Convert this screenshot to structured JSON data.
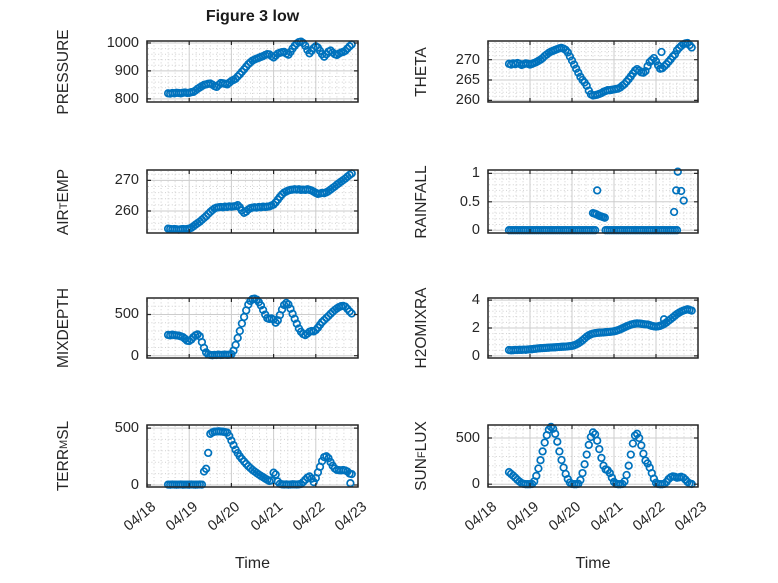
{
  "figure": {
    "title": "Figure 3 low",
    "x_axis": {
      "label": "Time",
      "tick_labels": [
        "04/18",
        "04/19",
        "04/20",
        "04/21",
        "04/22",
        "04/23"
      ]
    }
  },
  "style": {
    "marker_color": "#0072BD",
    "axis_color": "#262626",
    "text_color": "#262626",
    "major_grid_color": "#cdcdcd",
    "minor_grid_color": "#c9c9c9",
    "background": "#ffffff"
  },
  "chart_data": [
    {
      "name": "PRESSURE",
      "type": "scatter",
      "ylabel_parts": [
        {
          "text": "PRESSURE",
          "sub": false
        }
      ],
      "yticks": [
        800,
        900,
        1000
      ],
      "ytick_labels": [
        "800",
        "900",
        "1000"
      ],
      "ylim": [
        789,
        1007
      ],
      "minor_y_step": 20,
      "xlim": [
        0,
        5
      ],
      "x_start": 0.5,
      "x_step": 0.05,
      "y": [
        820,
        819,
        821,
        820,
        822,
        821,
        820,
        822,
        823,
        821,
        822,
        824,
        825,
        830,
        836,
        841,
        846,
        850,
        852,
        854,
        855,
        851,
        846,
        843,
        850,
        857,
        856,
        854,
        852,
        858,
        864,
        868,
        872,
        880,
        888,
        897,
        906,
        915,
        924,
        931,
        937,
        941,
        944,
        947,
        950,
        953,
        957,
        960,
        959,
        953,
        948,
        955,
        962,
        965,
        967,
        968,
        962,
        958,
        968,
        980,
        990,
        998,
        1003,
        1005,
        1000,
        990,
        975,
        963,
        972,
        982,
        988,
        983,
        972,
        960,
        951,
        960,
        969,
        973,
        966,
        960,
        957,
        962,
        966,
        968,
        972,
        980,
        988,
        995
      ],
      "extra_points": []
    },
    {
      "name": "THETA",
      "type": "scatter",
      "ylabel_parts": [
        {
          "text": "THETA",
          "sub": false
        }
      ],
      "yticks": [
        260,
        265,
        270
      ],
      "ytick_labels": [
        "260",
        "265",
        "270"
      ],
      "ylim": [
        259.6,
        274.6
      ],
      "minor_y_step": 1,
      "xlim": [
        0,
        5
      ],
      "x_start": 0.5,
      "x_step": 0.05,
      "y": [
        269.0,
        268.8,
        269.1,
        268.9,
        269.2,
        269.0,
        268.7,
        268.9,
        269.1,
        269.0,
        268.8,
        269.0,
        269.2,
        269.4,
        269.7,
        270.0,
        270.4,
        270.9,
        271.3,
        271.7,
        272.0,
        272.2,
        272.4,
        272.6,
        272.8,
        272.9,
        272.7,
        272.4,
        271.8,
        270.8,
        269.8,
        268.8,
        267.8,
        266.8,
        265.8,
        265.0,
        264.4,
        263.6,
        262.4,
        261.5,
        261.2,
        261.3,
        261.4,
        261.6,
        261.8,
        262.1,
        262.3,
        262.5,
        262.5,
        262.6,
        262.7,
        262.8,
        262.9,
        263.2,
        263.6,
        264.0,
        264.6,
        265.2,
        265.9,
        266.6,
        267.3,
        267.7,
        267.3,
        266.9,
        266.8,
        267.2,
        268.4,
        269.4,
        269.9,
        270.4,
        269.6,
        268.6,
        267.8,
        267.9,
        268.4,
        268.9,
        269.5,
        270.1,
        270.8,
        271.3,
        272.3,
        272.9,
        273.4,
        273.8,
        274.0,
        274.1,
        273.6,
        273.0
      ],
      "extra_points": [
        [
          4.13,
          271.9
        ]
      ]
    },
    {
      "name": "AIR_TEMP",
      "type": "scatter",
      "ylabel_parts": [
        {
          "text": "AIR",
          "sub": false
        },
        {
          "text": "T",
          "sub": true
        },
        {
          "text": "EMP",
          "sub": false
        }
      ],
      "yticks": [
        260,
        270
      ],
      "ytick_labels": [
        "260",
        "270"
      ],
      "ylim": [
        252.8,
        273.4
      ],
      "minor_y_step": 2,
      "xlim": [
        0,
        5
      ],
      "x_start": 0.5,
      "x_step": 0.05,
      "y": [
        254.2,
        254.1,
        254.0,
        254.1,
        254.0,
        253.9,
        254.0,
        254.1,
        254.0,
        254.1,
        254.2,
        254.5,
        255.0,
        255.5,
        256.0,
        256.5,
        257.1,
        257.7,
        258.3,
        259.0,
        259.7,
        260.3,
        260.8,
        261.1,
        261.2,
        261.3,
        261.2,
        261.4,
        261.3,
        261.5,
        261.4,
        261.5,
        261.6,
        261.9,
        261.2,
        260.2,
        259.4,
        259.8,
        260.5,
        260.9,
        261.1,
        261.2,
        261.1,
        261.3,
        261.2,
        261.4,
        261.3,
        261.4,
        261.5,
        261.8,
        262.1,
        262.8,
        263.7,
        264.6,
        265.4,
        266.0,
        266.4,
        266.7,
        266.9,
        267.0,
        267.1,
        267.0,
        267.1,
        266.9,
        267.0,
        266.9,
        267.1,
        266.9,
        266.7,
        266.3,
        265.9,
        265.6,
        265.7,
        265.9,
        265.8,
        266.1,
        266.5,
        267.0,
        267.5,
        268.0,
        268.6,
        269.1,
        269.6,
        270.1,
        270.6,
        271.2,
        271.8,
        272.3
      ],
      "extra_points": []
    },
    {
      "name": "RAINFALL",
      "type": "scatter",
      "ylabel_parts": [
        {
          "text": "RAINFALL",
          "sub": false
        }
      ],
      "yticks": [
        0,
        0.5,
        1
      ],
      "ytick_labels": [
        "0",
        "0.5",
        "1"
      ],
      "ylim": [
        -0.05,
        1.06
      ],
      "minor_y_step": 0.1,
      "xlim": [
        0,
        5
      ],
      "x_start": 0.5,
      "x_step": 0.05,
      "y": [
        0,
        0,
        0,
        0,
        0,
        0,
        0,
        0,
        0,
        0,
        0,
        0,
        0,
        0,
        0,
        0,
        0,
        0,
        0,
        0,
        0,
        0,
        0,
        0,
        0,
        0,
        0,
        0,
        0,
        0,
        0,
        0,
        0,
        0,
        0,
        0,
        0,
        0,
        0,
        0,
        0,
        0,
        null,
        null,
        null,
        null,
        0,
        0,
        0,
        0,
        0,
        0,
        0,
        0,
        0,
        0,
        0,
        0,
        0,
        0,
        0,
        0,
        0,
        0,
        0,
        0,
        0,
        0,
        0,
        0,
        0,
        0,
        0,
        0,
        0,
        0,
        0,
        0,
        0,
        0,
        0,
        null,
        null,
        null,
        null,
        null,
        null,
        null
      ],
      "extra_points": [
        [
          2.5,
          0.3
        ],
        [
          2.54,
          0.29
        ],
        [
          2.58,
          0.28
        ],
        [
          2.6,
          0.7
        ],
        [
          2.63,
          0.26
        ],
        [
          2.66,
          0.25
        ],
        [
          2.7,
          0.24
        ],
        [
          2.74,
          0.23
        ],
        [
          2.78,
          0.22
        ],
        [
          4.43,
          0.32
        ],
        [
          4.48,
          0.7
        ],
        [
          4.52,
          1.03
        ],
        [
          4.6,
          0.69
        ],
        [
          4.66,
          0.52
        ]
      ]
    },
    {
      "name": "MIXDEPTH",
      "type": "scatter",
      "ylabel_parts": [
        {
          "text": "MIXDEPTH",
          "sub": false
        }
      ],
      "yticks": [
        0,
        500
      ],
      "ytick_labels": [
        "0",
        "500"
      ],
      "ylim": [
        -28,
        700
      ],
      "minor_y_step": 100,
      "xlim": [
        0,
        5
      ],
      "x_start": 0.5,
      "x_step": 0.05,
      "y": [
        252,
        248,
        255,
        250,
        246,
        242,
        235,
        225,
        205,
        182,
        178,
        195,
        225,
        248,
        258,
        235,
        165,
        95,
        40,
        15,
        8,
        6,
        10,
        8,
        12,
        9,
        11,
        13,
        10,
        12,
        18,
        60,
        130,
        215,
        300,
        390,
        470,
        550,
        620,
        665,
        688,
        692,
        680,
        650,
        610,
        555,
        498,
        455,
        445,
        452,
        438,
        400,
        430,
        492,
        560,
        615,
        640,
        622,
        570,
        508,
        448,
        388,
        330,
        290,
        262,
        250,
        268,
        290,
        300,
        295,
        310,
        340,
        375,
        408,
        432,
        458,
        482,
        508,
        532,
        554,
        574,
        590,
        600,
        604,
        594,
        568,
        538,
        512
      ],
      "extra_points": []
    },
    {
      "name": "H2OMIXRA",
      "type": "scatter",
      "ylabel_parts": [
        {
          "text": "H2OMIXRA",
          "sub": false
        }
      ],
      "yticks": [
        0,
        2,
        4
      ],
      "ytick_labels": [
        "0",
        "2",
        "4"
      ],
      "ylim": [
        -0.15,
        4.15
      ],
      "minor_y_step": 0.4,
      "xlim": [
        0,
        5
      ],
      "x_start": 0.5,
      "x_step": 0.05,
      "y": [
        0.42,
        0.4,
        0.41,
        0.43,
        0.42,
        0.44,
        0.43,
        0.45,
        0.44,
        0.46,
        0.47,
        0.48,
        0.5,
        0.52,
        0.54,
        0.55,
        0.56,
        0.57,
        0.58,
        0.59,
        0.6,
        0.61,
        0.62,
        0.63,
        0.64,
        0.65,
        0.66,
        0.67,
        0.68,
        0.7,
        0.72,
        0.76,
        0.82,
        0.9,
        1.0,
        1.12,
        1.25,
        1.38,
        1.48,
        1.55,
        1.6,
        1.63,
        1.65,
        1.66,
        1.67,
        1.68,
        1.7,
        1.71,
        1.72,
        1.74,
        1.76,
        1.8,
        1.85,
        1.91,
        1.98,
        2.05,
        2.12,
        2.18,
        2.24,
        2.28,
        2.31,
        2.33,
        2.32,
        2.3,
        2.28,
        2.26,
        2.25,
        2.2,
        2.15,
        2.12,
        2.1,
        2.12,
        2.16,
        2.22,
        2.3,
        2.4,
        2.52,
        2.64,
        2.76,
        2.88,
        3.0,
        3.1,
        3.18,
        3.25,
        3.3,
        3.34,
        3.3,
        3.25
      ],
      "extra_points": [
        [
          4.19,
          2.62
        ]
      ]
    },
    {
      "name": "TERR_MSL",
      "type": "scatter",
      "ylabel_parts": [
        {
          "text": "TERR",
          "sub": false
        },
        {
          "text": "M",
          "sub": true
        },
        {
          "text": "SL",
          "sub": false
        }
      ],
      "yticks": [
        0,
        500
      ],
      "ytick_labels": [
        "0",
        "500"
      ],
      "ylim": [
        -18,
        527
      ],
      "minor_y_step": 100,
      "xlim": [
        0,
        5
      ],
      "x_start": 0.5,
      "x_step": 0.05,
      "y": [
        3,
        2,
        4,
        3,
        2,
        3,
        4,
        2,
        3,
        3,
        2,
        4,
        3,
        2,
        3,
        4,
        3,
        118,
        142,
        282,
        450,
        462,
        468,
        470,
        472,
        470,
        468,
        465,
        460,
        430,
        390,
        350,
        310,
        280,
        252,
        228,
        205,
        185,
        165,
        148,
        132,
        118,
        105,
        92,
        80,
        68,
        56,
        45,
        35,
        40,
        108,
        92,
        30,
        10,
        6,
        4,
        5,
        3,
        4,
        6,
        5,
        4,
        6,
        8,
        25,
        45,
        65,
        75,
        55,
        25,
        60,
        110,
        160,
        210,
        245,
        252,
        235,
        200,
        168,
        145,
        132,
        130,
        128,
        131,
        127,
        118,
        100,
        95
      ],
      "extra_points": [
        [
          4.82,
          15
        ]
      ]
    },
    {
      "name": "SUN_FLUX",
      "type": "scatter",
      "ylabel_parts": [
        {
          "text": "SUN",
          "sub": false
        },
        {
          "text": "F",
          "sub": true
        },
        {
          "text": "LUX",
          "sub": false
        }
      ],
      "yticks": [
        0,
        500
      ],
      "ytick_labels": [
        "0",
        "500"
      ],
      "ylim": [
        -30,
        640
      ],
      "minor_y_step": 100,
      "xlim": [
        0,
        5
      ],
      "x_start": 0.5,
      "x_step": 0.05,
      "y": [
        130,
        112,
        92,
        70,
        48,
        28,
        12,
        4,
        0,
        0,
        0,
        2,
        30,
        90,
        170,
        260,
        355,
        450,
        530,
        590,
        620,
        600,
        545,
        460,
        355,
        262,
        180,
        110,
        55,
        18,
        2,
        0,
        0,
        5,
        45,
        120,
        215,
        320,
        425,
        510,
        560,
        540,
        470,
        380,
        285,
        200,
        160,
        150,
        120,
        70,
        25,
        4,
        0,
        0,
        2,
        30,
        100,
        200,
        320,
        440,
        525,
        545,
        500,
        420,
        330,
        255,
        225,
        180,
        120,
        60,
        15,
        2,
        0,
        0,
        5,
        25,
        55,
        75,
        85,
        80,
        70,
        75,
        80,
        70,
        50,
        25,
        8,
        2
      ],
      "extra_points": []
    }
  ]
}
